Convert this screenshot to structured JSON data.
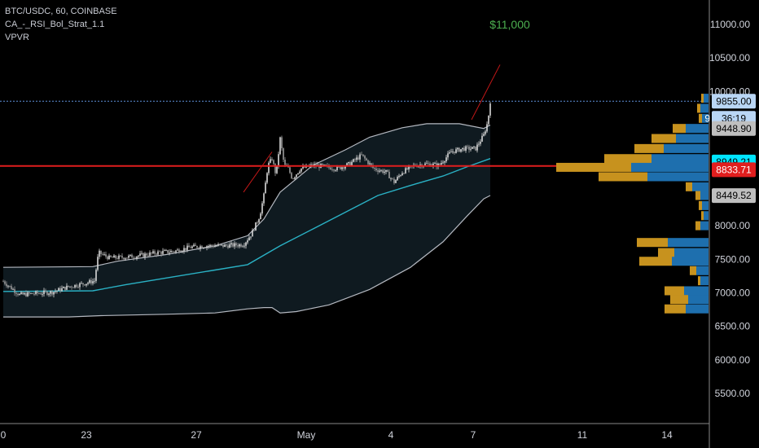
{
  "legend": {
    "symbol": "BTC/USDC, 60, COINBASE",
    "indicator": "CA_-_RSI_Bol_Strat_1.1",
    "vpvr": "VPVR"
  },
  "annotation": {
    "text": "$11,000",
    "color": "#4caf50"
  },
  "colors": {
    "background": "#000000",
    "band_fill": "#0f1a20",
    "band_stroke": "#b4b8c0",
    "middle_line": "#2ab1c4",
    "candle_up": "#d9d9d9",
    "candle_down": "#9a9a9a",
    "current_price_line": "#5d8fd9",
    "support_line": "#e01e1e",
    "trend_line": "#c51818",
    "vp_up": "#1e6fae",
    "vp_down": "#c7921e",
    "axis_text": "#d1d4dc",
    "axis_border": "#888888"
  },
  "chart_data": {
    "type": "candlestick",
    "symbol": "BTC/USDC",
    "interval": "60",
    "exchange": "COINBASE",
    "y_axis": {
      "ticks": [
        "11000.00",
        "10500.00",
        "10000.00",
        "8000.00",
        "7500.00",
        "7000.00",
        "6500.00",
        "6000.00",
        "5500.00"
      ],
      "ylim": [
        5200,
        11250
      ]
    },
    "x_axis": {
      "ticks": [
        {
          "label": "0",
          "index": 0
        },
        {
          "label": "23",
          "index": 102
        },
        {
          "label": "27",
          "index": 237
        },
        {
          "label": "May",
          "index": 372
        },
        {
          "label": "4",
          "index": 476
        },
        {
          "label": "7",
          "index": 577
        },
        {
          "label": "11",
          "index": 711
        },
        {
          "label": "14",
          "index": 815
        }
      ]
    },
    "price_tags": [
      {
        "value": "9855.00",
        "price": 9855,
        "bg": "#b9d6f5",
        "fg": "#000000"
      },
      {
        "value": "36:19",
        "price": 9600,
        "bg": "#b9d6f5",
        "fg": "#000000",
        "prefix": "9"
      },
      {
        "value": "9448.90",
        "price": 9448.9,
        "bg": "#bfbfbf",
        "fg": "#000000"
      },
      {
        "value": "8949.21",
        "price": 8949.21,
        "bg": "#00e5ff",
        "fg": "#000000"
      },
      {
        "value": "8833.71",
        "price": 8833.71,
        "bg": "#e01e1e",
        "fg": "#ffffff"
      },
      {
        "value": "8449.52",
        "price": 8449.52,
        "bg": "#bfbfbf",
        "fg": "#000000"
      }
    ],
    "horizontal_lines": [
      {
        "price": 9855,
        "style": "dotted",
        "role": "current"
      },
      {
        "price": 8890,
        "style": "solid",
        "role": "support"
      }
    ],
    "price_path": [
      [
        0,
        7170
      ],
      [
        20,
        6970
      ],
      [
        40,
        6990
      ],
      [
        60,
        7010
      ],
      [
        80,
        7090
      ],
      [
        100,
        7140
      ],
      [
        112,
        7180
      ],
      [
        117,
        7600
      ],
      [
        130,
        7520
      ],
      [
        150,
        7530
      ],
      [
        170,
        7560
      ],
      [
        190,
        7600
      ],
      [
        210,
        7620
      ],
      [
        230,
        7680
      ],
      [
        250,
        7700
      ],
      [
        270,
        7700
      ],
      [
        295,
        7720
      ],
      [
        305,
        7880
      ],
      [
        315,
        8150
      ],
      [
        320,
        8450
      ],
      [
        325,
        8900
      ],
      [
        330,
        9000
      ],
      [
        335,
        8750
      ],
      [
        340,
        9300
      ],
      [
        345,
        8900
      ],
      [
        350,
        8850
      ],
      [
        355,
        8700
      ],
      [
        365,
        8850
      ],
      [
        380,
        8900
      ],
      [
        395,
        8880
      ],
      [
        410,
        8850
      ],
      [
        425,
        8920
      ],
      [
        440,
        9050
      ],
      [
        455,
        8850
      ],
      [
        470,
        8800
      ],
      [
        480,
        8650
      ],
      [
        490,
        8800
      ],
      [
        505,
        8900
      ],
      [
        520,
        8920
      ],
      [
        535,
        8900
      ],
      [
        550,
        9100
      ],
      [
        565,
        9150
      ],
      [
        580,
        9150
      ],
      [
        590,
        9350
      ],
      [
        595,
        9550
      ],
      [
        598,
        9855
      ]
    ],
    "bollinger": {
      "upper": [
        [
          0,
          7380
        ],
        [
          110,
          7390
        ],
        [
          140,
          7470
        ],
        [
          200,
          7570
        ],
        [
          260,
          7700
        ],
        [
          300,
          7850
        ],
        [
          320,
          8100
        ],
        [
          340,
          8500
        ],
        [
          380,
          8900
        ],
        [
          420,
          9130
        ],
        [
          450,
          9320
        ],
        [
          490,
          9460
        ],
        [
          520,
          9520
        ],
        [
          560,
          9520
        ],
        [
          590,
          9450
        ],
        [
          598,
          9500
        ]
      ],
      "middle": [
        [
          0,
          7020
        ],
        [
          110,
          7030
        ],
        [
          150,
          7120
        ],
        [
          200,
          7220
        ],
        [
          260,
          7340
        ],
        [
          300,
          7420
        ],
        [
          340,
          7700
        ],
        [
          380,
          7950
        ],
        [
          420,
          8200
        ],
        [
          460,
          8450
        ],
        [
          500,
          8600
        ],
        [
          540,
          8740
        ],
        [
          570,
          8880
        ],
        [
          598,
          9000
        ]
      ],
      "lower": [
        [
          0,
          6640
        ],
        [
          40,
          6640
        ],
        [
          80,
          6640
        ],
        [
          120,
          6660
        ],
        [
          200,
          6680
        ],
        [
          260,
          6700
        ],
        [
          300,
          6760
        ],
        [
          320,
          6780
        ],
        [
          330,
          6780
        ],
        [
          340,
          6700
        ],
        [
          360,
          6720
        ],
        [
          400,
          6820
        ],
        [
          450,
          7050
        ],
        [
          500,
          7380
        ],
        [
          540,
          7760
        ],
        [
          570,
          8150
        ],
        [
          590,
          8400
        ],
        [
          598,
          8450
        ]
      ]
    },
    "trend_lines": [
      {
        "from": [
          295,
          8500
        ],
        "to": [
          330,
          9100
        ]
      },
      {
        "from": [
          575,
          9580
        ],
        "to": [
          610,
          10400
        ]
      }
    ],
    "volume_profile": [
      {
        "price": 9900,
        "up": 6,
        "down": 3
      },
      {
        "price": 9750,
        "up": 10,
        "down": 4
      },
      {
        "price": 9600,
        "up": 8,
        "down": 4
      },
      {
        "price": 9450,
        "up": 28,
        "down": 16
      },
      {
        "price": 9300,
        "up": 40,
        "down": 30
      },
      {
        "price": 9150,
        "up": 55,
        "down": 36
      },
      {
        "price": 9000,
        "up": 70,
        "down": 58
      },
      {
        "price": 8870,
        "up": 95,
        "down": 92
      },
      {
        "price": 8730,
        "up": 75,
        "down": 60
      },
      {
        "price": 8580,
        "up": 20,
        "down": 8
      },
      {
        "price": 8450,
        "up": 10,
        "down": 6
      },
      {
        "price": 8300,
        "up": 8,
        "down": 4
      },
      {
        "price": 8150,
        "up": 6,
        "down": 3
      },
      {
        "price": 8000,
        "up": 10,
        "down": 6
      },
      {
        "price": 7750,
        "up": 50,
        "down": 38
      },
      {
        "price": 7600,
        "up": 42,
        "down": 20
      },
      {
        "price": 7470,
        "up": 45,
        "down": 40
      },
      {
        "price": 7330,
        "up": 15,
        "down": 8
      },
      {
        "price": 7180,
        "up": 10,
        "down": 3
      },
      {
        "price": 7030,
        "up": 30,
        "down": 24
      },
      {
        "price": 6900,
        "up": 25,
        "down": 22
      },
      {
        "price": 6760,
        "up": 28,
        "down": 26
      }
    ]
  }
}
